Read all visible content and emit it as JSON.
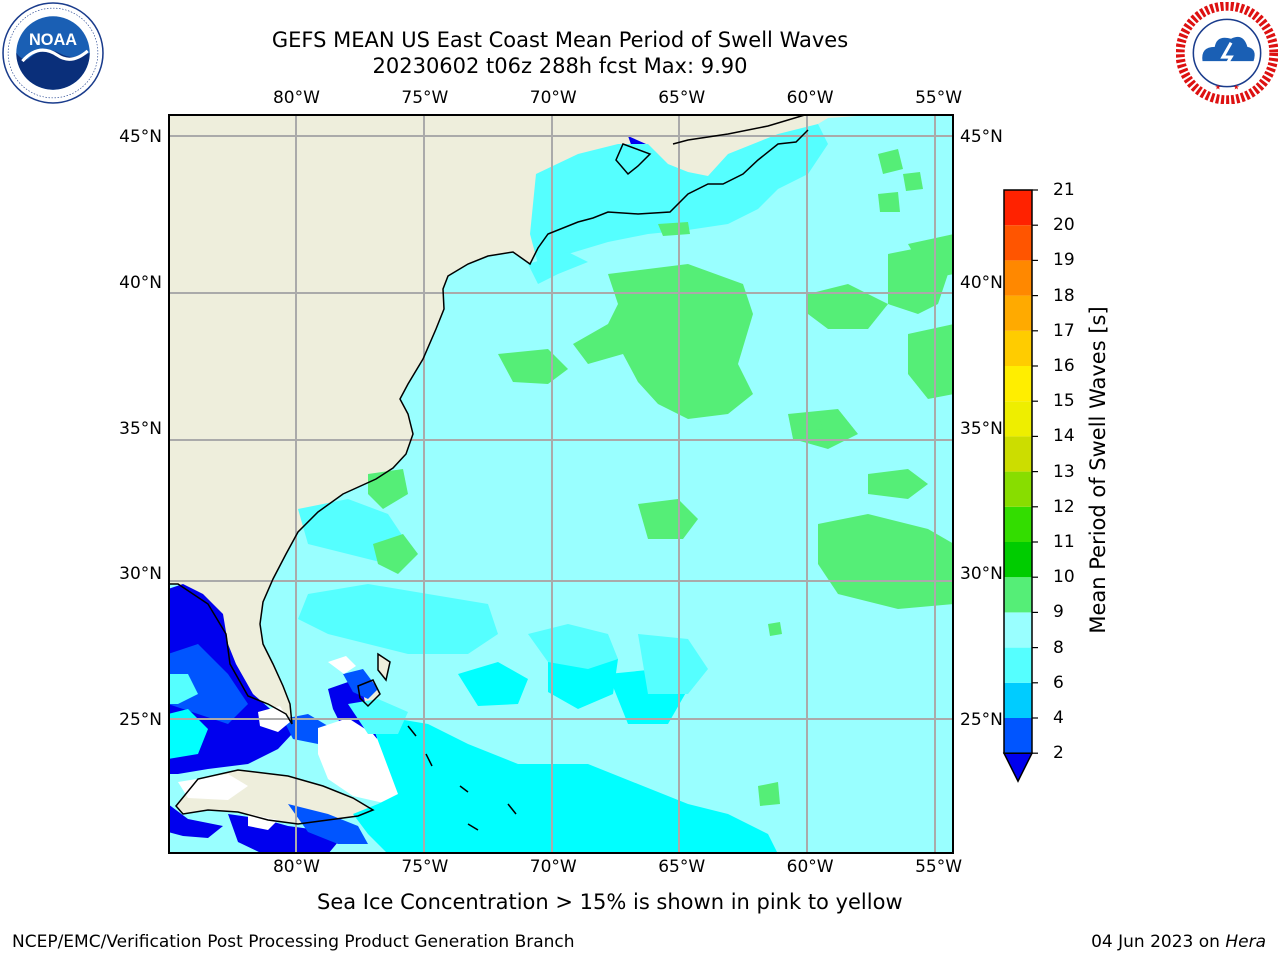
{
  "header": {
    "title_line1": "GEFS MEAN US East Coast Mean Period of Swell Waves",
    "title_line2": "20230602 t06z 288h fcst   Max: 9.90"
  },
  "logos": {
    "left": "noaa-logo",
    "right": "national-weather-service-logo"
  },
  "map": {
    "projection": "equirectangular",
    "lon_range": [
      -85,
      -54.4
    ],
    "lat_range": [
      20.4,
      45.8
    ],
    "graticule": true,
    "lon_ticks": [
      {
        "value": -80,
        "label": "80°W"
      },
      {
        "value": -75,
        "label": "75°W"
      },
      {
        "value": -70,
        "label": "70°W"
      },
      {
        "value": -65,
        "label": "65°W"
      },
      {
        "value": -60,
        "label": "60°W"
      },
      {
        "value": -55,
        "label": "55°W"
      }
    ],
    "lat_ticks": [
      {
        "value": 45,
        "label": "45°N"
      },
      {
        "value": 40,
        "label": "40°N"
      },
      {
        "value": 35,
        "label": "35°N"
      },
      {
        "value": 30,
        "label": "30°N"
      },
      {
        "value": 25,
        "label": "25°N"
      }
    ],
    "colors": {
      "land": "#eeeedc",
      "ocean_default": "#99ffff",
      "grid": "#aaaaaa",
      "undefined_area": "#ffffff",
      "coastline": "#000000"
    }
  },
  "colorbar": {
    "title": "Mean Period of Swell Waves [s]",
    "levels": [
      2,
      4,
      6,
      8,
      9,
      10,
      11,
      12,
      13,
      14,
      15,
      16,
      17,
      18,
      19,
      20,
      21
    ],
    "tick_labels": [
      "2",
      "4",
      "6",
      "8",
      "9",
      "10",
      "11",
      "12",
      "13",
      "14",
      "15",
      "16",
      "17",
      "18",
      "19",
      "20",
      "21"
    ],
    "colors": [
      "#0055ff",
      "#00ccff",
      "#55ffff",
      "#99ffff",
      "#55ee77",
      "#00cc00",
      "#33dd00",
      "#88dd00",
      "#ccdd00",
      "#eeee00",
      "#ffee00",
      "#ffcc00",
      "#ffaa00",
      "#ff8800",
      "#ff5500",
      "#ff2200"
    ],
    "under_color": "#0000ee",
    "extend": "min"
  },
  "note": "Sea Ice Concentration > 15% is shown in pink to yellow",
  "footer": {
    "left": "NCEP/EMC/Verification Post Processing Product Generation Branch",
    "date": "04 Jun 2023 on",
    "host": "Hera"
  }
}
